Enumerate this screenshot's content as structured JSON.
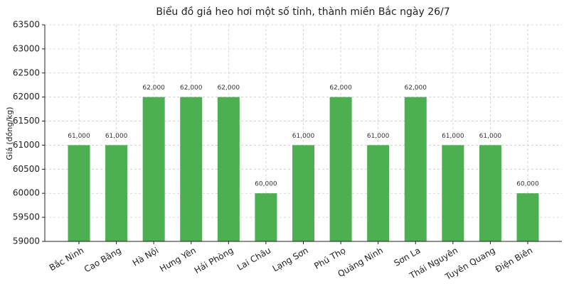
{
  "chart_data": {
    "type": "bar",
    "title": "Biểu đồ giá heo hơi một số tỉnh, thành miền Bắc ngày 26/7",
    "y_label": "Giá (đồng/kg)",
    "categories": [
      "Bắc Ninh",
      "Cao Bằng",
      "Hà Nội",
      "Hưng Yên",
      "Hải Phòng",
      "Lai Châu",
      "Lạng Sơn",
      "Phú Thọ",
      "Quảng Ninh",
      "Sơn La",
      "Thái Nguyên",
      "Tuyên Quang",
      "Điện Biên"
    ],
    "values": [
      61000,
      61000,
      62000,
      62000,
      62000,
      60000,
      61000,
      62000,
      61000,
      62000,
      61000,
      61000,
      60000
    ],
    "value_labels": [
      "61,000",
      "61,000",
      "62,000",
      "62,000",
      "62,000",
      "60,000",
      "61,000",
      "62,000",
      "61,000",
      "62,000",
      "61,000",
      "61,000",
      "60,000"
    ],
    "color": "#4caf50",
    "ylim": [
      59000,
      63500
    ],
    "yticks": [
      59000,
      59500,
      60000,
      60500,
      61000,
      61500,
      62000,
      62500,
      63000,
      63500
    ],
    "grid": true
  }
}
